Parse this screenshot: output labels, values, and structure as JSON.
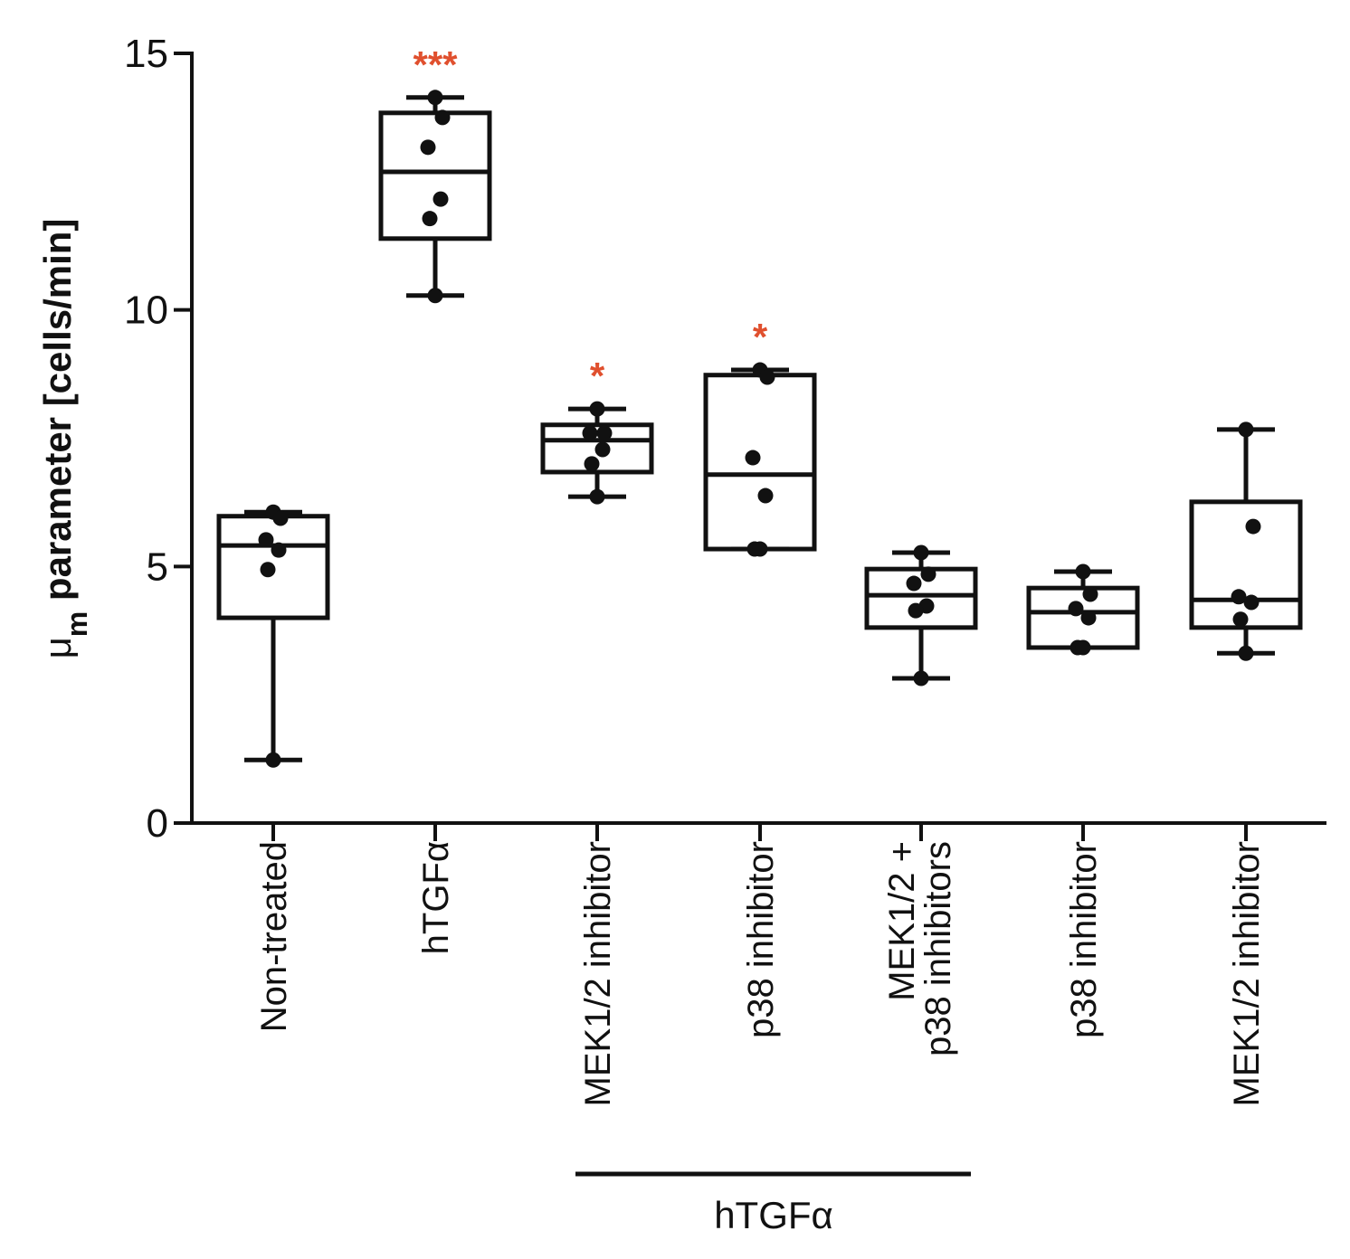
{
  "chart_data": {
    "type": "box",
    "title": "",
    "ylabel": "μm parameter [cells/min]",
    "ylabel_parts": {
      "main": "μ",
      "sub": "m",
      "rest": " parameter [cells/min]"
    },
    "xlabel": "",
    "ylim": [
      0,
      15
    ],
    "yticks": [
      0,
      5,
      10,
      15
    ],
    "ytick_labels": [
      "0",
      "5",
      "10",
      "15"
    ],
    "grid": false,
    "significance_color": "#e0502e",
    "categories": [
      {
        "label": [
          "Non-treated"
        ],
        "min": 1.23,
        "q1": 4.0,
        "median": 5.41,
        "q3": 5.98,
        "max": 6.06,
        "points": [
          6.06,
          5.94,
          5.52,
          5.32,
          4.94,
          1.23
        ],
        "sig": ""
      },
      {
        "label": [
          "hTGFα"
        ],
        "min": 10.28,
        "q1": 11.39,
        "median": 12.69,
        "q3": 13.84,
        "max": 14.14,
        "points": [
          14.14,
          13.75,
          13.17,
          12.16,
          11.78,
          10.28
        ],
        "sig": "***"
      },
      {
        "label": [
          "MEK1/2 inhibitor"
        ],
        "min": 6.36,
        "q1": 6.84,
        "median": 7.46,
        "q3": 7.76,
        "max": 8.07,
        "points": [
          8.07,
          7.6,
          7.6,
          7.28,
          7.0,
          6.36
        ],
        "sig": "*"
      },
      {
        "label": [
          "p38 inhibitor"
        ],
        "min": 5.34,
        "q1": 5.34,
        "median": 6.79,
        "q3": 8.73,
        "max": 8.83,
        "points": [
          8.83,
          8.69,
          7.12,
          6.38,
          5.34,
          5.34
        ],
        "sig": "*"
      },
      {
        "label": [
          "MEK1/2 +",
          "p38 inhibitors"
        ],
        "min": 2.82,
        "q1": 3.81,
        "median": 4.44,
        "q3": 4.95,
        "max": 5.27,
        "points": [
          5.27,
          4.85,
          4.67,
          4.23,
          4.14,
          2.82
        ],
        "sig": ""
      },
      {
        "label": [
          "p38 inhibitor"
        ],
        "min": 3.42,
        "q1": 3.42,
        "median": 4.11,
        "q3": 4.58,
        "max": 4.9,
        "points": [
          4.9,
          4.46,
          4.18,
          4.0,
          3.42,
          3.42
        ],
        "sig": ""
      },
      {
        "label": [
          "MEK1/2 inhibitor"
        ],
        "min": 3.31,
        "q1": 3.81,
        "median": 4.35,
        "q3": 6.26,
        "max": 7.67,
        "points": [
          7.67,
          5.78,
          4.41,
          4.3,
          3.97,
          3.31
        ],
        "sig": ""
      }
    ],
    "group_bracket": {
      "label": "hTGFα",
      "from_category": 2,
      "to_category": 4
    }
  }
}
